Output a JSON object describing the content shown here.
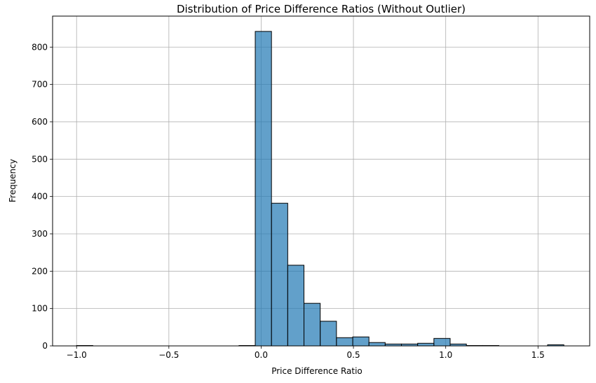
{
  "chart_data": {
    "type": "bar",
    "title": "Distribution of Price Difference Ratios (Without Outlier)",
    "xlabel": "Price Difference Ratio",
    "ylabel": "Frequency",
    "xlim": [
      -1.13,
      1.78
    ],
    "ylim": [
      0,
      883
    ],
    "grid": true,
    "bar_color": "#1f77b4",
    "bar_alpha": 0.7,
    "edge_color": "#000000",
    "x_ticks": [
      -1.0,
      -0.5,
      0.0,
      0.5,
      1.0,
      1.5
    ],
    "x_tick_labels": [
      "−1.0",
      "−0.5",
      "0.0",
      "0.5",
      "1.0",
      "1.5"
    ],
    "y_ticks": [
      0,
      100,
      200,
      300,
      400,
      500,
      600,
      700,
      800
    ],
    "y_tick_labels": [
      "0",
      "100",
      "200",
      "300",
      "400",
      "500",
      "600",
      "700",
      "800"
    ],
    "bins": [
      {
        "start": -1.0,
        "end": -0.912,
        "value": 1
      },
      {
        "start": -0.912,
        "end": -0.824,
        "value": 0
      },
      {
        "start": -0.824,
        "end": -0.736,
        "value": 0
      },
      {
        "start": -0.736,
        "end": -0.648,
        "value": 0
      },
      {
        "start": -0.648,
        "end": -0.56,
        "value": 0
      },
      {
        "start": -0.56,
        "end": -0.472,
        "value": 0
      },
      {
        "start": -0.472,
        "end": -0.384,
        "value": 0
      },
      {
        "start": -0.384,
        "end": -0.296,
        "value": 0
      },
      {
        "start": -0.296,
        "end": -0.208,
        "value": 0
      },
      {
        "start": -0.208,
        "end": -0.12,
        "value": 0
      },
      {
        "start": -0.12,
        "end": -0.032,
        "value": 1
      },
      {
        "start": -0.032,
        "end": 0.056,
        "value": 842
      },
      {
        "start": 0.056,
        "end": 0.144,
        "value": 382
      },
      {
        "start": 0.144,
        "end": 0.232,
        "value": 216
      },
      {
        "start": 0.232,
        "end": 0.32,
        "value": 114
      },
      {
        "start": 0.32,
        "end": 0.408,
        "value": 66
      },
      {
        "start": 0.408,
        "end": 0.496,
        "value": 22
      },
      {
        "start": 0.496,
        "end": 0.584,
        "value": 24
      },
      {
        "start": 0.584,
        "end": 0.672,
        "value": 9
      },
      {
        "start": 0.672,
        "end": 0.76,
        "value": 5
      },
      {
        "start": 0.76,
        "end": 0.848,
        "value": 5
      },
      {
        "start": 0.848,
        "end": 0.936,
        "value": 7
      },
      {
        "start": 0.936,
        "end": 1.024,
        "value": 20
      },
      {
        "start": 1.024,
        "end": 1.112,
        "value": 5
      },
      {
        "start": 1.112,
        "end": 1.2,
        "value": 1
      },
      {
        "start": 1.2,
        "end": 1.288,
        "value": 1
      },
      {
        "start": 1.288,
        "end": 1.376,
        "value": 0
      },
      {
        "start": 1.376,
        "end": 1.464,
        "value": 0
      },
      {
        "start": 1.464,
        "end": 1.552,
        "value": 0
      },
      {
        "start": 1.552,
        "end": 1.64,
        "value": 3
      }
    ]
  }
}
